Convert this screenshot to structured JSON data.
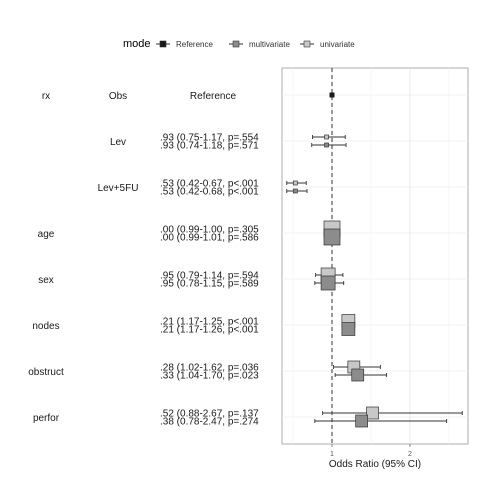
{
  "chart_data": {
    "type": "forest",
    "legend": {
      "title": "mode",
      "entries": [
        {
          "name": "Reference",
          "color": "#1a1a1a"
        },
        {
          "name": "multivariate",
          "color": "#8c8c8c"
        },
        {
          "name": "univariate",
          "color": "#c8c8c8"
        }
      ]
    },
    "headers": {
      "variable": "rx",
      "level": "Obs",
      "estimate": "Reference"
    },
    "xlabel": "Odds Ratio (95% CI)",
    "x_ticks": [
      1,
      2
    ],
    "xlim": [
      0.5,
      2.75
    ],
    "reference_line": 1,
    "rows": [
      {
        "variable": "rx",
        "level": "Obs",
        "text": "Reference",
        "reference": true,
        "estimate": 1.0
      },
      {
        "variable": "",
        "level": "Lev",
        "items": [
          {
            "mode": "univariate",
            "text": ".93 (0.75-1.17, p=.554",
            "or": 0.93,
            "low": 0.75,
            "high": 1.17
          },
          {
            "mode": "multivariate",
            "text": ".93 (0.74-1.18, p=.571",
            "or": 0.93,
            "low": 0.74,
            "high": 1.18
          }
        ]
      },
      {
        "variable": "",
        "level": "Lev+5FU",
        "items": [
          {
            "mode": "univariate",
            "text": ".53 (0.42-0.67, p<.001",
            "or": 0.53,
            "low": 0.42,
            "high": 0.67
          },
          {
            "mode": "multivariate",
            "text": ".53 (0.42-0.68, p<.001",
            "or": 0.53,
            "low": 0.42,
            "high": 0.68
          }
        ]
      },
      {
        "variable": "age",
        "level": "",
        "items": [
          {
            "mode": "univariate",
            "text": ".00 (0.99-1.00, p=.305",
            "or": 1.0,
            "low": 0.99,
            "high": 1.0
          },
          {
            "mode": "multivariate",
            "text": ".00 (0.99-1.01, p=.586",
            "or": 1.0,
            "low": 0.99,
            "high": 1.01
          }
        ]
      },
      {
        "variable": "sex",
        "level": "",
        "items": [
          {
            "mode": "univariate",
            "text": ".95 (0.79-1.14, p=.594",
            "or": 0.95,
            "low": 0.79,
            "high": 1.14
          },
          {
            "mode": "multivariate",
            "text": ".95 (0.78-1.15, p=.589",
            "or": 0.95,
            "low": 0.78,
            "high": 1.15
          }
        ]
      },
      {
        "variable": "nodes",
        "level": "",
        "items": [
          {
            "mode": "univariate",
            "text": ".21 (1.17-1.25, p<.001",
            "or": 1.21,
            "low": 1.17,
            "high": 1.25
          },
          {
            "mode": "multivariate",
            "text": ".21 (1.17-1.26, p<.001",
            "or": 1.21,
            "low": 1.17,
            "high": 1.26
          }
        ]
      },
      {
        "variable": "obstruct",
        "level": "",
        "items": [
          {
            "mode": "univariate",
            "text": ".28 (1.02-1.62, p=.036",
            "or": 1.28,
            "low": 1.02,
            "high": 1.62
          },
          {
            "mode": "multivariate",
            "text": ".33 (1.04-1.70, p=.023",
            "or": 1.33,
            "low": 1.04,
            "high": 1.7
          }
        ]
      },
      {
        "variable": "perfor",
        "level": "",
        "items": [
          {
            "mode": "univariate",
            "text": ".52 (0.88-2.67, p=.137",
            "or": 1.52,
            "low": 0.88,
            "high": 2.67
          },
          {
            "mode": "multivariate",
            "text": ".38 (0.78-2.47, p=.274",
            "or": 1.38,
            "low": 0.78,
            "high": 2.47
          }
        ]
      }
    ]
  }
}
